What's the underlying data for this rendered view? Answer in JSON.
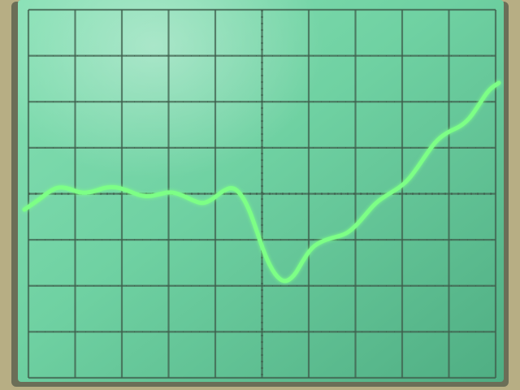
{
  "photo": {
    "subject": "oscilloscope-screen",
    "screen_color": "#6fd1a2",
    "trace_color": "#7dff86",
    "grid_color": "#3f5e4c",
    "divisions": {
      "horizontal": 10,
      "vertical": 8
    }
  }
}
